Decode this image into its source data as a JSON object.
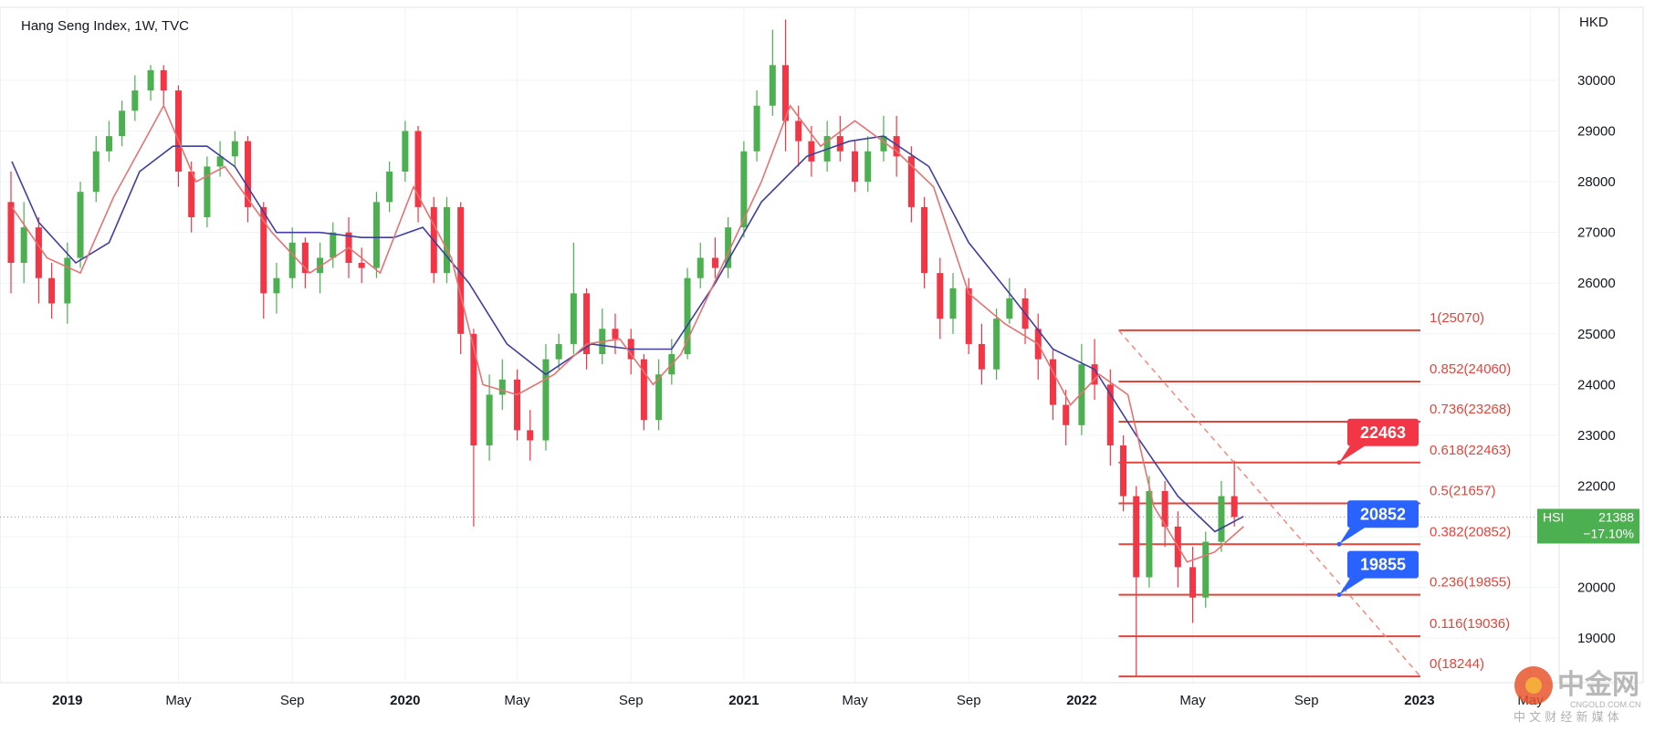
{
  "chart_title": "Hang Seng Index, 1W, TVC",
  "currency_label": "HKD",
  "y_ticks": [
    19000,
    20000,
    21000,
    22000,
    23000,
    24000,
    25000,
    26000,
    27000,
    28000,
    29000,
    30000
  ],
  "x_ticks": [
    {
      "label": "2019",
      "date": "2019-01-01",
      "bold": true
    },
    {
      "label": "May",
      "date": "2019-05-01",
      "bold": false
    },
    {
      "label": "Sep",
      "date": "2019-09-01",
      "bold": false
    },
    {
      "label": "2020",
      "date": "2020-01-01",
      "bold": true
    },
    {
      "label": "May",
      "date": "2020-05-01",
      "bold": false
    },
    {
      "label": "Sep",
      "date": "2020-09-01",
      "bold": false
    },
    {
      "label": "2021",
      "date": "2021-01-01",
      "bold": true
    },
    {
      "label": "May",
      "date": "2021-05-01",
      "bold": false
    },
    {
      "label": "Sep",
      "date": "2021-09-01",
      "bold": false
    },
    {
      "label": "2022",
      "date": "2022-01-01",
      "bold": true
    },
    {
      "label": "May",
      "date": "2022-05-01",
      "bold": false
    },
    {
      "label": "Sep",
      "date": "2022-09-01",
      "bold": false
    },
    {
      "label": "2023",
      "date": "2023-01-01",
      "bold": true
    },
    {
      "label": "May",
      "date": "2023-05-01",
      "bold": false
    }
  ],
  "symbol_tag": {
    "symbol": "HSI",
    "price": "21388",
    "change": "−17.10%"
  },
  "current_price": 21388,
  "fib_levels": [
    {
      "label": "1(25070)",
      "value": 25070
    },
    {
      "label": "0.852(24060)",
      "value": 24060
    },
    {
      "label": "0.736(23268)",
      "value": 23268
    },
    {
      "label": "0.618(22463)",
      "value": 22463
    },
    {
      "label": "0.5(21657)",
      "value": 21657
    },
    {
      "label": "0.382(20852)",
      "value": 20852
    },
    {
      "label": "0.236(19855)",
      "value": 19855
    },
    {
      "label": "0.116(19036)",
      "value": 19036
    },
    {
      "label": "0(18244)",
      "value": 18244
    }
  ],
  "callouts": [
    {
      "text": "22463",
      "value": 22463,
      "color": "#f23645"
    },
    {
      "text": "20852",
      "value": 20852,
      "color": "#2962ff"
    },
    {
      "text": "19855",
      "value": 19855,
      "color": "#2962ff"
    }
  ],
  "watermark": {
    "main": "中金网",
    "sub": "CNGOLD.COM.CN",
    "cn": "中 文 财 经 新 媒 体"
  },
  "colors": {
    "up": "#4caf50",
    "down": "#f23645",
    "ma_fast": "#e57373",
    "ma_slow": "#3f3fa0",
    "fib": "#e0463c",
    "tag": "#4caf50"
  },
  "chart_data": {
    "type": "candlestick",
    "title": "Hang Seng Index, 1W, TVC",
    "ylabel": "HKD",
    "ylim": [
      18000,
      31500
    ],
    "xlim": [
      "2018-11-01",
      "2023-06-01"
    ],
    "grid": true,
    "series": [
      {
        "name": "",
        "type": "line",
        "points": [
          [
            "2018-11-02",
            28400
          ],
          [
            "2018-12-01",
            27200
          ],
          [
            "2019-01-10",
            26400
          ],
          [
            "2019-02-15",
            26800
          ],
          [
            "2019-03-20",
            28200
          ],
          [
            "2019-04-25",
            28700
          ],
          [
            "2019-06-01",
            28700
          ],
          [
            "2019-07-01",
            28300
          ],
          [
            "2019-08-15",
            27000
          ],
          [
            "2019-10-01",
            27000
          ],
          [
            "2019-11-15",
            26900
          ],
          [
            "2019-12-20",
            26900
          ],
          [
            "2020-01-20",
            27100
          ],
          [
            "2020-03-10",
            26000
          ],
          [
            "2020-04-20",
            24800
          ],
          [
            "2020-06-01",
            24200
          ],
          [
            "2020-07-20",
            24800
          ],
          [
            "2020-09-01",
            24700
          ],
          [
            "2020-10-15",
            24700
          ],
          [
            "2020-12-01",
            26000
          ],
          [
            "2021-01-20",
            27600
          ],
          [
            "2021-03-10",
            28500
          ],
          [
            "2021-04-25",
            28800
          ],
          [
            "2021-06-01",
            28900
          ],
          [
            "2021-07-20",
            28300
          ],
          [
            "2021-09-01",
            26800
          ],
          [
            "2021-10-15",
            25800
          ],
          [
            "2021-12-01",
            24700
          ],
          [
            "2022-01-15",
            24300
          ],
          [
            "2022-03-01",
            23000
          ],
          [
            "2022-04-15",
            21800
          ],
          [
            "2022-05-25",
            21100
          ],
          [
            "2022-06-25",
            21400
          ]
        ]
      },
      {
        "name": "",
        "type": "line",
        "points": [
          [
            "2018-11-02",
            27500
          ],
          [
            "2018-12-10",
            26500
          ],
          [
            "2019-01-15",
            26200
          ],
          [
            "2019-02-20",
            27700
          ],
          [
            "2019-03-25",
            28800
          ],
          [
            "2019-04-15",
            29500
          ],
          [
            "2019-05-20",
            28000
          ],
          [
            "2019-06-20",
            28300
          ],
          [
            "2019-08-10",
            27000
          ],
          [
            "2019-09-20",
            26200
          ],
          [
            "2019-11-01",
            26700
          ],
          [
            "2019-12-05",
            26200
          ],
          [
            "2020-01-10",
            27900
          ],
          [
            "2020-02-20",
            26500
          ],
          [
            "2020-03-25",
            24000
          ],
          [
            "2020-05-01",
            23800
          ],
          [
            "2020-06-10",
            24200
          ],
          [
            "2020-07-15",
            24800
          ],
          [
            "2020-08-20",
            24900
          ],
          [
            "2020-09-25",
            24000
          ],
          [
            "2020-10-25",
            24600
          ],
          [
            "2020-12-10",
            26400
          ],
          [
            "2021-01-20",
            28000
          ],
          [
            "2021-02-20",
            29500
          ],
          [
            "2021-03-25",
            28700
          ],
          [
            "2021-05-01",
            29200
          ],
          [
            "2021-06-15",
            28600
          ],
          [
            "2021-07-25",
            27900
          ],
          [
            "2021-09-01",
            25800
          ],
          [
            "2021-10-10",
            25200
          ],
          [
            "2021-11-15",
            24800
          ],
          [
            "2021-12-20",
            23600
          ],
          [
            "2022-01-20",
            24200
          ],
          [
            "2022-02-20",
            23800
          ],
          [
            "2022-03-20",
            21600
          ],
          [
            "2022-04-25",
            20500
          ],
          [
            "2022-05-25",
            20700
          ],
          [
            "2022-06-25",
            21200
          ]
        ]
      },
      {
        "name": "",
        "type": "candles",
        "points": [
          [
            "2018-11-01",
            27600,
            26400,
            28200,
            25800
          ],
          [
            "2018-11-15",
            26400,
            27100,
            27600,
            26000
          ],
          [
            "2018-12-01",
            27100,
            26100,
            27300,
            25600
          ],
          [
            "2018-12-15",
            26100,
            25600,
            26400,
            25300
          ],
          [
            "2019-01-01",
            25600,
            26500,
            26800,
            25200
          ],
          [
            "2019-01-15",
            26500,
            27800,
            28000,
            26300
          ],
          [
            "2019-02-01",
            27800,
            28600,
            28900,
            27600
          ],
          [
            "2019-02-15",
            28600,
            28900,
            29200,
            28400
          ],
          [
            "2019-03-01",
            28900,
            29400,
            29600,
            28700
          ],
          [
            "2019-03-15",
            29400,
            29800,
            30100,
            29200
          ],
          [
            "2019-04-01",
            29800,
            30200,
            30300,
            29600
          ],
          [
            "2019-04-15",
            30200,
            29800,
            30300,
            29500
          ],
          [
            "2019-05-01",
            29800,
            28200,
            29900,
            27900
          ],
          [
            "2019-05-15",
            28200,
            27300,
            28400,
            27000
          ],
          [
            "2019-06-01",
            27300,
            28300,
            28500,
            27100
          ],
          [
            "2019-06-15",
            28300,
            28500,
            28800,
            28100
          ],
          [
            "2019-07-01",
            28500,
            28800,
            29000,
            28300
          ],
          [
            "2019-07-15",
            28800,
            27500,
            28900,
            27200
          ],
          [
            "2019-08-01",
            27500,
            25800,
            27600,
            25300
          ],
          [
            "2019-08-15",
            25800,
            26100,
            26400,
            25400
          ],
          [
            "2019-09-01",
            26100,
            26800,
            27100,
            25900
          ],
          [
            "2019-09-15",
            26800,
            26200,
            26900,
            25900
          ],
          [
            "2019-10-01",
            26200,
            26500,
            26800,
            25800
          ],
          [
            "2019-10-15",
            26500,
            27000,
            27200,
            26300
          ],
          [
            "2019-11-01",
            27000,
            26400,
            27300,
            26100
          ],
          [
            "2019-11-15",
            26400,
            26300,
            26700,
            26000
          ],
          [
            "2019-12-01",
            26300,
            27600,
            27800,
            26100
          ],
          [
            "2019-12-15",
            27600,
            28200,
            28400,
            27400
          ],
          [
            "2020-01-01",
            28200,
            29000,
            29200,
            28000
          ],
          [
            "2020-01-15",
            29000,
            27500,
            29100,
            27200
          ],
          [
            "2020-02-01",
            27500,
            26200,
            27700,
            26000
          ],
          [
            "2020-02-15",
            26200,
            27500,
            27700,
            26000
          ],
          [
            "2020-03-01",
            27500,
            25000,
            27600,
            24600
          ],
          [
            "2020-03-15",
            25000,
            22800,
            25100,
            21200
          ],
          [
            "2020-04-01",
            22800,
            23800,
            24200,
            22500
          ],
          [
            "2020-04-15",
            23800,
            24100,
            24500,
            23500
          ],
          [
            "2020-05-01",
            24100,
            23100,
            24300,
            22900
          ],
          [
            "2020-05-15",
            23100,
            22900,
            23500,
            22500
          ],
          [
            "2020-06-01",
            22900,
            24500,
            24800,
            22700
          ],
          [
            "2020-06-15",
            24500,
            24800,
            25000,
            24300
          ],
          [
            "2020-07-01",
            24800,
            25800,
            26800,
            24600
          ],
          [
            "2020-07-15",
            25800,
            24600,
            25900,
            24300
          ],
          [
            "2020-08-01",
            24600,
            25100,
            25500,
            24400
          ],
          [
            "2020-08-15",
            25100,
            24900,
            25400,
            24600
          ],
          [
            "2020-09-01",
            24900,
            24500,
            25100,
            24200
          ],
          [
            "2020-09-15",
            24500,
            23300,
            24600,
            23100
          ],
          [
            "2020-10-01",
            23300,
            24200,
            24500,
            23100
          ],
          [
            "2020-10-15",
            24200,
            24600,
            24900,
            24000
          ],
          [
            "2020-11-01",
            24600,
            26100,
            26300,
            24500
          ],
          [
            "2020-11-15",
            26100,
            26500,
            26800,
            25900
          ],
          [
            "2020-12-01",
            26500,
            26300,
            26900,
            26100
          ],
          [
            "2020-12-15",
            26300,
            27100,
            27300,
            26100
          ],
          [
            "2021-01-01",
            27100,
            28600,
            28800,
            26900
          ],
          [
            "2021-01-15",
            28600,
            29500,
            29800,
            28400
          ],
          [
            "2021-02-01",
            29500,
            30300,
            31000,
            29300
          ],
          [
            "2021-02-15",
            30300,
            29200,
            31200,
            28600
          ],
          [
            "2021-03-01",
            29200,
            28800,
            29500,
            28300
          ],
          [
            "2021-03-15",
            28800,
            28400,
            29100,
            28100
          ],
          [
            "2021-04-01",
            28400,
            28900,
            29200,
            28200
          ],
          [
            "2021-04-15",
            28900,
            28600,
            29300,
            28400
          ],
          [
            "2021-05-01",
            28600,
            28000,
            28800,
            27800
          ],
          [
            "2021-05-15",
            28000,
            28600,
            28900,
            27800
          ],
          [
            "2021-06-01",
            28600,
            28900,
            29300,
            28400
          ],
          [
            "2021-06-15",
            28900,
            28500,
            29300,
            28100
          ],
          [
            "2021-07-01",
            28500,
            27500,
            28700,
            27200
          ],
          [
            "2021-07-15",
            27500,
            26200,
            27700,
            25900
          ],
          [
            "2021-08-01",
            26200,
            25300,
            26500,
            24900
          ],
          [
            "2021-08-15",
            25300,
            25900,
            26200,
            25000
          ],
          [
            "2021-09-01",
            25900,
            24800,
            26100,
            24600
          ],
          [
            "2021-09-15",
            24800,
            24300,
            25200,
            24000
          ],
          [
            "2021-10-01",
            24300,
            25300,
            25500,
            24100
          ],
          [
            "2021-10-15",
            25300,
            25700,
            26100,
            25200
          ],
          [
            "2021-11-01",
            25700,
            25100,
            25900,
            24800
          ],
          [
            "2021-11-15",
            25100,
            24500,
            25400,
            24100
          ],
          [
            "2021-12-01",
            24500,
            23600,
            24700,
            23300
          ],
          [
            "2021-12-15",
            23600,
            23200,
            23900,
            22800
          ],
          [
            "2022-01-01",
            23200,
            24400,
            24800,
            23000
          ],
          [
            "2022-01-15",
            24400,
            24000,
            24900,
            23700
          ],
          [
            "2022-02-01",
            24000,
            22800,
            24300,
            22400
          ],
          [
            "2022-02-15",
            22800,
            21800,
            23000,
            21500
          ],
          [
            "2022-03-01",
            21800,
            20200,
            22000,
            18250
          ],
          [
            "2022-03-15",
            20200,
            21900,
            22200,
            20000
          ],
          [
            "2022-04-01",
            21900,
            21200,
            22100,
            20800
          ],
          [
            "2022-04-15",
            21200,
            20400,
            21500,
            20000
          ],
          [
            "2022-05-01",
            20400,
            19800,
            20800,
            19300
          ],
          [
            "2022-05-15",
            19800,
            20900,
            21100,
            19600
          ],
          [
            "2022-06-01",
            20900,
            21800,
            22100,
            20700
          ],
          [
            "2022-06-15",
            21800,
            21388,
            22500,
            21200
          ]
        ]
      }
    ]
  }
}
